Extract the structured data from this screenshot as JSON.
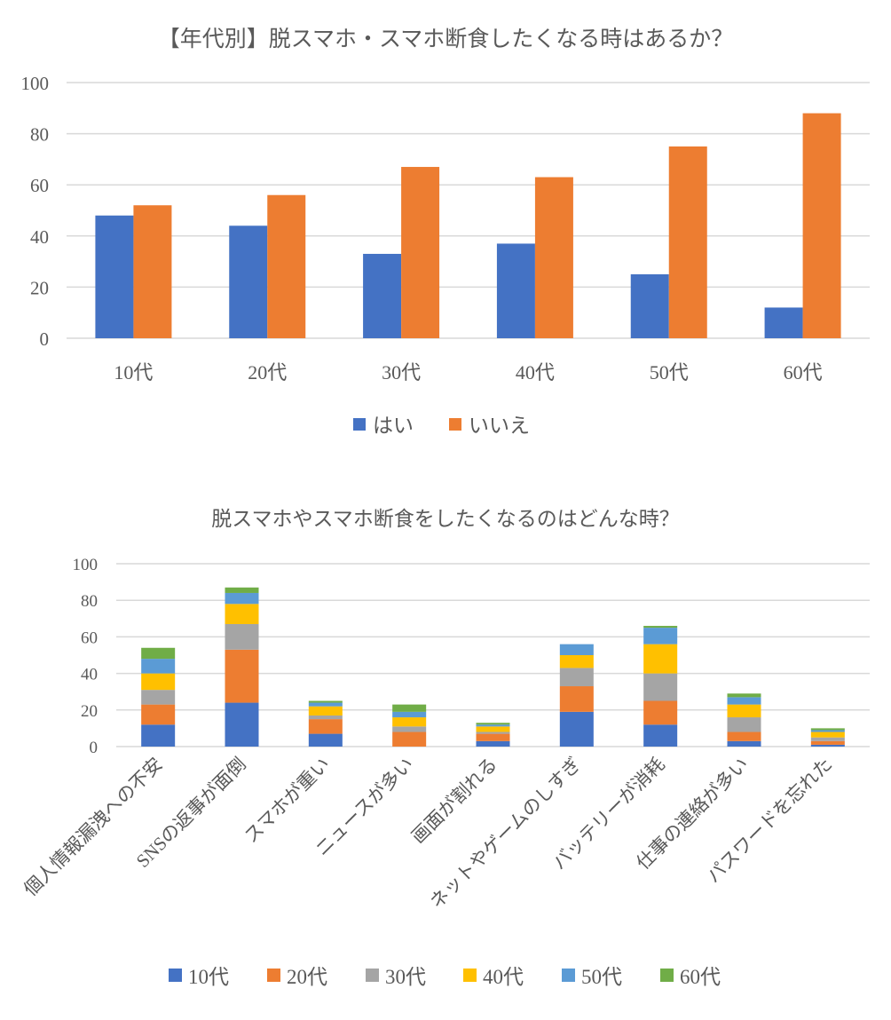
{
  "chart_data": [
    {
      "type": "bar",
      "title": "【年代別】脱スマホ・スマホ断食したくなる時はあるか？",
      "categories": [
        "10代",
        "20代",
        "30代",
        "40代",
        "50代",
        "60代"
      ],
      "series": [
        {
          "name": "はい",
          "color": "#4472C4",
          "values": [
            48,
            44,
            33,
            37,
            25,
            12
          ]
        },
        {
          "name": "いいえ",
          "color": "#ED7D31",
          "values": [
            52,
            56,
            67,
            63,
            75,
            88
          ]
        }
      ],
      "yticks": [
        "0",
        "20",
        "40",
        "60",
        "80",
        "100"
      ],
      "ylim": [
        0,
        100
      ],
      "grid": true,
      "legend": "bottom"
    },
    {
      "type": "bar",
      "stacked": true,
      "title": "脱スマホやスマホ断食をしたくなるのはどんな時？",
      "categories": [
        "個人情報漏洩への不安",
        "SNSの返事が面倒",
        "スマホが重い",
        "ニュースが多い",
        "画面が割れる",
        "ネットやゲームのしすぎ",
        "バッテリーが消耗",
        "仕事の連絡が多い",
        "パスワードを忘れた"
      ],
      "series": [
        {
          "name": "10代",
          "color": "#4472C4",
          "values": [
            12,
            24,
            7,
            0,
            3,
            19,
            12,
            3,
            1
          ]
        },
        {
          "name": "20代",
          "color": "#ED7D31",
          "values": [
            11,
            29,
            8,
            8,
            4,
            14,
            13,
            5,
            2
          ]
        },
        {
          "name": "30代",
          "color": "#A5A5A5",
          "values": [
            8,
            14,
            2,
            3,
            1,
            10,
            15,
            8,
            2
          ]
        },
        {
          "name": "40代",
          "color": "#FFC000",
          "values": [
            9,
            11,
            5,
            5,
            3,
            7,
            16,
            7,
            3
          ]
        },
        {
          "name": "50代",
          "color": "#5B9BD5",
          "values": [
            8,
            6,
            2,
            3,
            1,
            6,
            9,
            4,
            1
          ]
        },
        {
          "name": "60代",
          "color": "#70AD47",
          "values": [
            6,
            3,
            1,
            4,
            1,
            0,
            1,
            2,
            1
          ]
        }
      ],
      "yticks": [
        "0",
        "20",
        "40",
        "60",
        "80",
        "100"
      ],
      "ylim": [
        0,
        100
      ],
      "grid": true,
      "legend": "bottom"
    }
  ]
}
